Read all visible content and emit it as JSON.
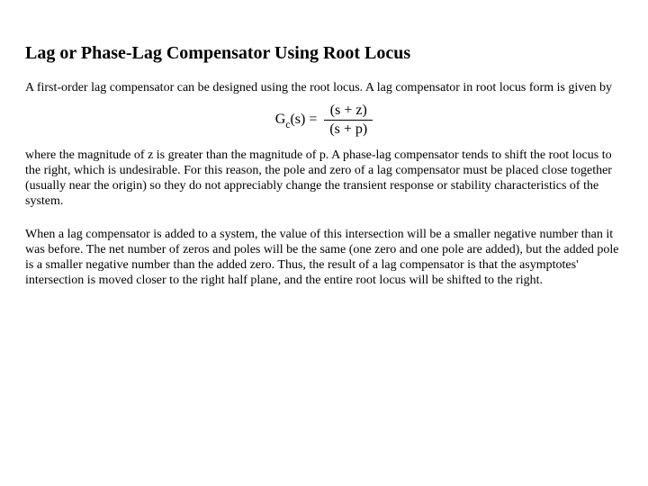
{
  "title": "Lag or Phase-Lag Compensator Using Root Locus",
  "para1": "A first-order lag compensator can be designed using the root locus. A lag compensator in root locus form is given by",
  "equation": {
    "lhs_base": "G",
    "lhs_sub": "c",
    "lhs_arg": "(s) =",
    "numerator": "(s + z)",
    "denominator": "(s + p)"
  },
  "para2": "where the magnitude of z is greater than the magnitude of p. A phase-lag compensator tends to shift the root locus to the right, which is undesirable. For this reason, the pole and zero of a lag compensator must be placed close together (usually near the origin) so they do not appreciably change the transient response or stability characteristics of the system.",
  "para3": "When a lag compensator is added to a system, the value of this intersection will be a smaller negative number than it was before. The net number of zeros and poles will be the same (one zero and one pole are added), but the added pole is a smaller negative number than the added zero. Thus, the result of a lag compensator is that the asymptotes' intersection is moved closer to the right half plane, and the entire root locus will be shifted to the right.",
  "styles": {
    "background_color": "#ffffff",
    "text_color": "#000000",
    "title_fontsize": 20,
    "body_fontsize": 14,
    "equation_fontsize": 16,
    "font_family": "Times New Roman"
  }
}
